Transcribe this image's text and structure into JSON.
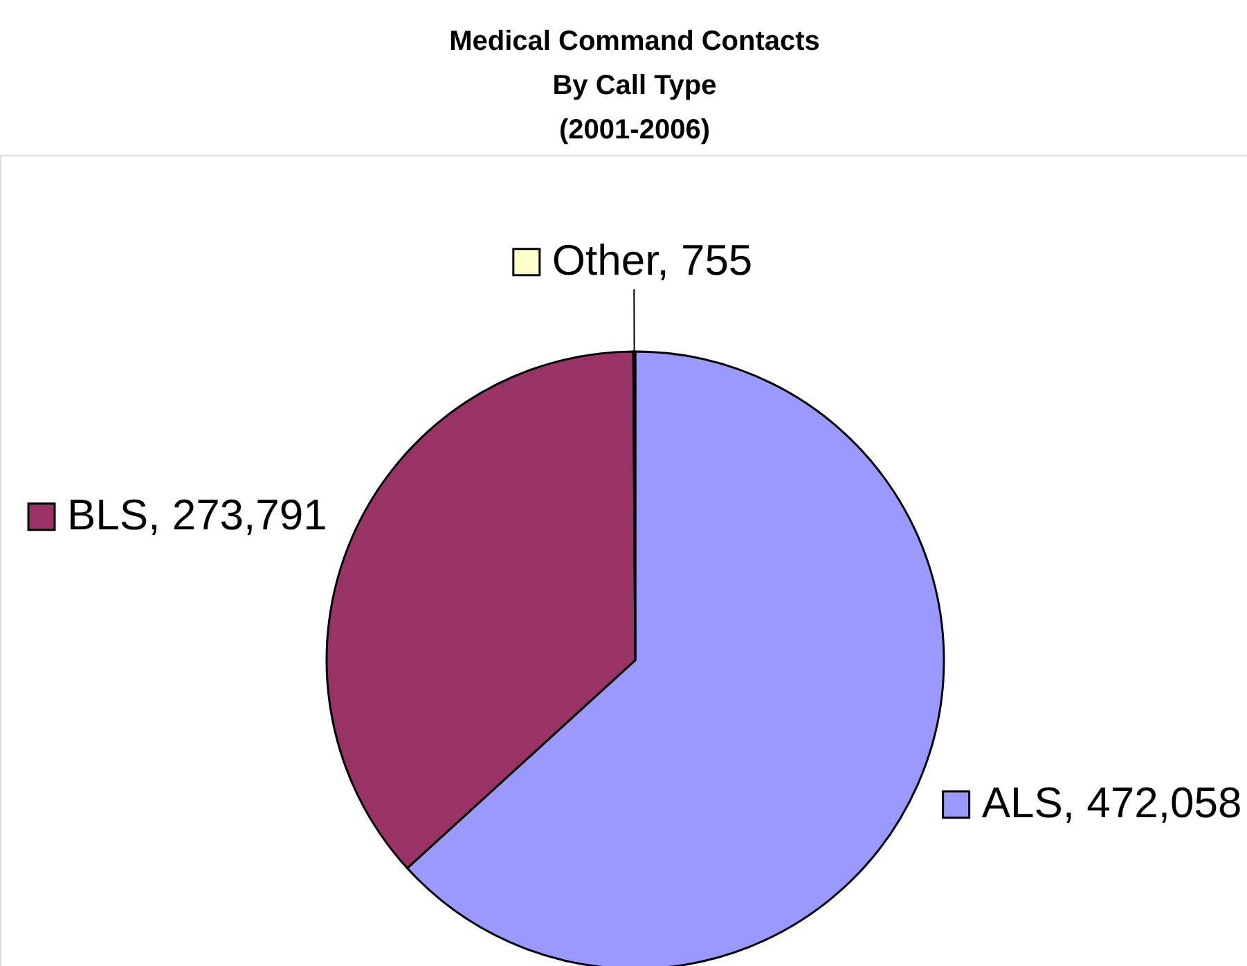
{
  "chart_data": {
    "type": "pie",
    "title": "Medical Command Contacts\nBy Call Type\n(2001-2006)",
    "categories": [
      "ALS",
      "BLS",
      "Other"
    ],
    "values": [
      472058,
      273791,
      755
    ],
    "colors": [
      "#9999ff",
      "#993366",
      "#ffffcc"
    ],
    "value_labels": [
      "472,058",
      "273,791",
      "755"
    ],
    "legend": "center"
  }
}
